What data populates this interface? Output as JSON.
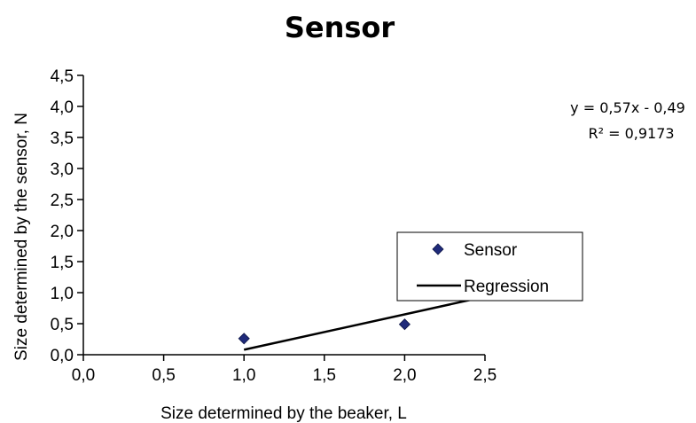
{
  "chart_data": {
    "type": "scatter",
    "title": "Sensor",
    "xlabel": "Size determined by the beaker, L",
    "ylabel": "Size determined by the sensor, N",
    "xlim": [
      0.0,
      2.5
    ],
    "ylim": [
      0.0,
      4.5
    ],
    "x_ticks": [
      "0,0",
      "0,5",
      "1,0",
      "1,5",
      "2,0",
      "2,5"
    ],
    "y_ticks": [
      "0,0",
      "0,5",
      "1,0",
      "1,5",
      "2,0",
      "2,5",
      "3,0",
      "3,5",
      "4,0",
      "4,5"
    ],
    "grid": false,
    "legend_position": "right",
    "series": [
      {
        "name": "Sensor",
        "marker": "diamond",
        "color": "#1f2a7a",
        "points": [
          {
            "x": 1.0,
            "y": 0.26
          },
          {
            "x": 2.0,
            "y": 0.49
          }
        ]
      },
      {
        "name": "Regression",
        "kind": "line",
        "color": "#000000",
        "slope": 0.57,
        "intercept": -0.49,
        "x_range": [
          1.0,
          2.45
        ]
      }
    ],
    "annotations": {
      "equation": "y = 0,57x - 0,49",
      "r_squared": "R² = 0,9173"
    }
  }
}
